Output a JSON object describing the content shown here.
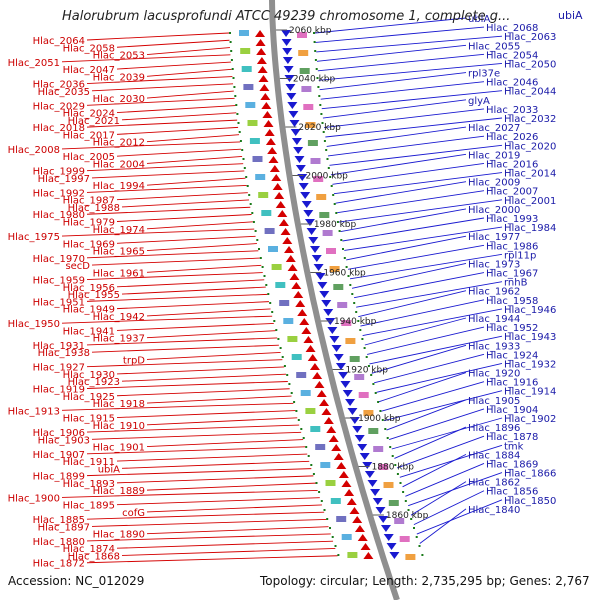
{
  "header": {
    "title": "Halorubrum lacusprofundi ATCC 49239 chromosome 1, complete g...",
    "corner_gene": "ubiA"
  },
  "footer": {
    "accession": "Accession: NC_012029",
    "topology": "Topology: circular; Length: 2,735,295 bp; Genes: 2,767"
  },
  "colors": {
    "reverse_strand": "#d40000",
    "forward_strand": "#1a1ad0",
    "backbone": "#8f8f8f",
    "tick": "#1a7a1a"
  },
  "ticks": [
    "2060 kbp",
    "2040 kbp",
    "2020 kbp",
    "2000 kbp",
    "1980 kbp",
    "1960 kbp",
    "1940 kbp",
    "1920 kbp",
    "1900 kbp",
    "1880 kbp",
    "1860 kbp"
  ],
  "left_labels": [
    "Hlac_2064",
    "Hlac_2058",
    "Hlac_2053",
    "Hlac_2051",
    "Hlac_2047",
    "Hlac_2039",
    "Hlac_2036",
    "Hlac_2035",
    "Hlac_2030",
    "Hlac_2029",
    "Hlac_2024",
    "Hlac_2021",
    "Hlac_2018",
    "Hlac_2017",
    "Hlac_2012",
    "Hlac_2008",
    "Hlac_2005",
    "Hlac_2004",
    "Hlac_1999",
    "Hlac_1997",
    "Hlac_1994",
    "Hlac_1992",
    "Hlac_1987",
    "Hlac_1988",
    "Hlac_1980",
    "Hlac_1979",
    "Hlac_1974",
    "Hlac_1975",
    "Hlac_1969",
    "Hlac_1965",
    "Hlac_1970",
    "secD",
    "Hlac_1961",
    "Hlac_1959",
    "Hlac_1956",
    "Hlac_1955",
    "Hlac_1951",
    "Hlac_1949",
    "Hlac_1942",
    "Hlac_1950",
    "Hlac_1941",
    "Hlac_1937",
    "Hlac_1931",
    "Hlac_1938",
    "trpD",
    "Hlac_1927",
    "Hlac_1930",
    "Hlac_1923",
    "Hlac_1919",
    "Hlac_1925",
    "Hlac_1918",
    "Hlac_1913",
    "Hlac_1915",
    "Hlac_1910",
    "Hlac_1906",
    "Hlac_1903",
    "Hlac_1901",
    "Hlac_1907",
    "Hlac_1911",
    "ubiA",
    "Hlac_1899",
    "Hlac_1893",
    "Hlac_1889",
    "Hlac_1900",
    "Hlac_1895",
    "cofG",
    "Hlac_1885",
    "Hlac_1897",
    "Hlac_1890",
    "Hlac_1880",
    "Hlac_1874",
    "Hlac_1868",
    "Hlac_1872"
  ],
  "right_labels": [
    "ubiA",
    "Hlac_2068",
    "Hlac_2063",
    "Hlac_2055",
    "Hlac_2054",
    "Hlac_2050",
    "rpl37e",
    "Hlac_2046",
    "Hlac_2044",
    "glyA",
    "Hlac_2033",
    "Hlac_2032",
    "Hlac_2027",
    "Hlac_2026",
    "Hlac_2020",
    "Hlac_2019",
    "Hlac_2016",
    "Hlac_2014",
    "Hlac_2009",
    "Hlac_2007",
    "Hlac_2001",
    "Hlac_2000",
    "Hlac_1993",
    "Hlac_1984",
    "Hlac_1977",
    "Hlac_1986",
    "rpl11p",
    "Hlac_1973",
    "Hlac_1967",
    "rnhB",
    "Hlac_1962",
    "Hlac_1958",
    "Hlac_1946",
    "Hlac_1944",
    "Hlac_1952",
    "Hlac_1943",
    "Hlac_1933",
    "Hlac_1924",
    "Hlac_1932",
    "Hlac_1920",
    "Hlac_1916",
    "Hlac_1914",
    "Hlac_1905",
    "Hlac_1904",
    "Hlac_1902",
    "Hlac_1896",
    "Hlac_1878",
    "tmk",
    "Hlac_1884",
    "Hlac_1869",
    "Hlac_1866",
    "Hlac_1862",
    "Hlac_1856",
    "Hlac_1850",
    "Hlac_1840"
  ]
}
